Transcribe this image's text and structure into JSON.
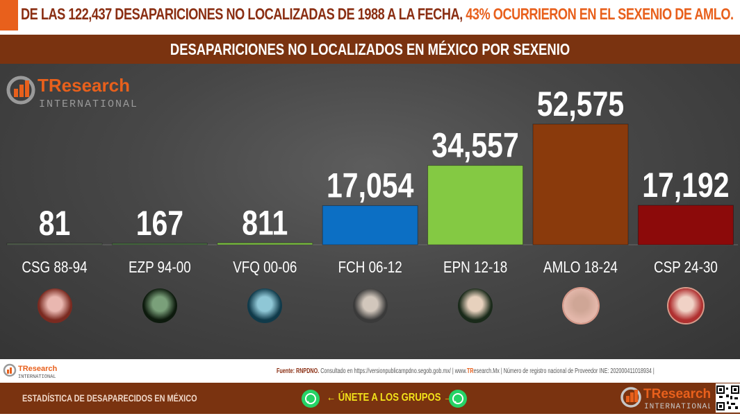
{
  "headline": {
    "main": "DE LAS 122,437 DESAPARICIONES NO LOCALIZADAS DE 1988 A LA FECHA,",
    "highlight": "43% OCURRIERON EN EL SEXENIO DE AMLO."
  },
  "chart_title": "DESAPARICIONES NO LOCALIZADOS EN MÉXICO POR SEXENIO",
  "logo": {
    "brand": "TResearch",
    "sub": "INTERNATIONAL"
  },
  "chart_data": {
    "type": "bar",
    "title": "DESAPARICIONES NO LOCALIZADOS EN MÉXICO POR SEXENIO",
    "categories": [
      "CSG 88-94",
      "EZP 94-00",
      "VFQ 00-06",
      "FCH 06-12",
      "EPN 12-18",
      "AMLO 18-24",
      "CSP 24-30"
    ],
    "values": [
      81,
      167,
      811,
      17054,
      34557,
      52575,
      17192
    ],
    "value_labels": [
      "81",
      "167",
      "811",
      "17,054",
      "34,557",
      "52,575",
      "17,192"
    ],
    "colors": [
      "#5a6b55",
      "#4e7a45",
      "#7dc242",
      "#0c6fc4",
      "#84c943",
      "#8a3a0c",
      "#8c0a0a"
    ],
    "ylim": [
      0,
      52575
    ],
    "grid": false,
    "legend": "none"
  },
  "portraits": [
    {
      "name": "CSG 88-94",
      "icon": "portrait-photo"
    },
    {
      "name": "EZP 94-00",
      "icon": "portrait-photo"
    },
    {
      "name": "VFQ 00-06",
      "icon": "portrait-photo"
    },
    {
      "name": "FCH 06-12",
      "icon": "portrait-photo"
    },
    {
      "name": "EPN 12-18",
      "icon": "portrait-photo"
    },
    {
      "name": "AMLO 18-24",
      "icon": "portrait-photo"
    },
    {
      "name": "CSP 24-30",
      "icon": "portrait-photo"
    }
  ],
  "source": {
    "label": "Fuente: RNPDNO.",
    "text": "Consultado en https://versionpublicarnpdno.segob.gob.mx/ | www.",
    "site_brand": "TR",
    "site_rest": "esearch.Mx | Número de registro nacional de Proveedor INE: 202000411018934 |"
  },
  "footer": {
    "left": "ESTADÍSTICA DE DESAPARECIDOS EN MÉXICO",
    "cta": "← ÚNETE A LOS GRUPOS →",
    "whatsapp_icon": "whatsapp-icon",
    "qr_icon": "qr-code-icon"
  }
}
